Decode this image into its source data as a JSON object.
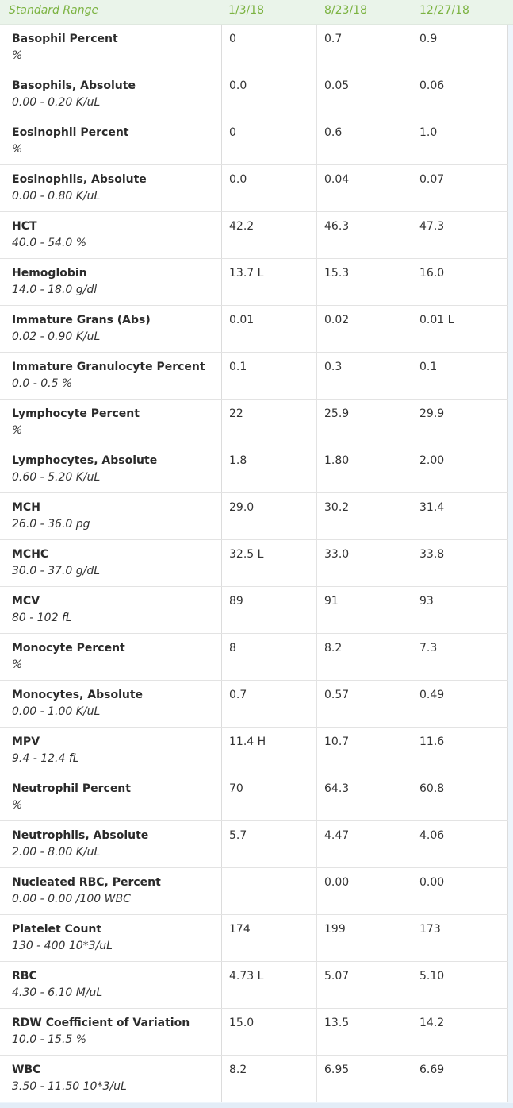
{
  "header": {
    "label": "Standard Range",
    "dates": [
      "1/3/18",
      "8/23/18",
      "12/27/18"
    ]
  },
  "rows": [
    {
      "name": "Basophil Percent",
      "range": "%",
      "values": [
        "0",
        "0.7",
        "0.9"
      ]
    },
    {
      "name": "Basophils, Absolute",
      "range": "0.00 - 0.20 K/uL",
      "values": [
        "0.0",
        "0.05",
        "0.06"
      ]
    },
    {
      "name": "Eosinophil Percent",
      "range": "%",
      "values": [
        "0",
        "0.6",
        "1.0"
      ]
    },
    {
      "name": "Eosinophils, Absolute",
      "range": "0.00 - 0.80 K/uL",
      "values": [
        "0.0",
        "0.04",
        "0.07"
      ]
    },
    {
      "name": "HCT",
      "range": "40.0 - 54.0 %",
      "values": [
        "42.2",
        "46.3",
        "47.3"
      ]
    },
    {
      "name": "Hemoglobin",
      "range": "14.0 - 18.0 g/dl",
      "values": [
        "13.7 L",
        "15.3",
        "16.0"
      ]
    },
    {
      "name": "Immature Grans (Abs)",
      "range": "0.02 - 0.90 K/uL",
      "values": [
        "0.01",
        "0.02",
        "0.01 L"
      ]
    },
    {
      "name": "Immature Granulocyte Percent",
      "range": "0.0 - 0.5 %",
      "values": [
        "0.1",
        "0.3",
        "0.1"
      ]
    },
    {
      "name": "Lymphocyte Percent",
      "range": "%",
      "values": [
        "22",
        "25.9",
        "29.9"
      ]
    },
    {
      "name": "Lymphocytes, Absolute",
      "range": "0.60 - 5.20 K/uL",
      "values": [
        "1.8",
        "1.80",
        "2.00"
      ]
    },
    {
      "name": "MCH",
      "range": "26.0 - 36.0 pg",
      "values": [
        "29.0",
        "30.2",
        "31.4"
      ]
    },
    {
      "name": "MCHC",
      "range": "30.0 - 37.0 g/dL",
      "values": [
        "32.5 L",
        "33.0",
        "33.8"
      ]
    },
    {
      "name": "MCV",
      "range": "80 - 102 fL",
      "values": [
        "89",
        "91",
        "93"
      ]
    },
    {
      "name": "Monocyte Percent",
      "range": "%",
      "values": [
        "8",
        "8.2",
        "7.3"
      ]
    },
    {
      "name": "Monocytes, Absolute",
      "range": "0.00 - 1.00 K/uL",
      "values": [
        "0.7",
        "0.57",
        "0.49"
      ]
    },
    {
      "name": "MPV",
      "range": "9.4 - 12.4 fL",
      "values": [
        "11.4 H",
        "10.7",
        "11.6"
      ]
    },
    {
      "name": "Neutrophil Percent",
      "range": "%",
      "values": [
        "70",
        "64.3",
        "60.8"
      ]
    },
    {
      "name": "Neutrophils, Absolute",
      "range": "2.00 - 8.00 K/uL",
      "values": [
        "5.7",
        "4.47",
        "4.06"
      ]
    },
    {
      "name": "Nucleated RBC, Percent",
      "range": "0.00 - 0.00 /100 WBC",
      "values": [
        "",
        "0.00",
        "0.00"
      ]
    },
    {
      "name": "Platelet Count",
      "range": "130 - 400 10*3/uL",
      "values": [
        "174",
        "199",
        "173"
      ]
    },
    {
      "name": "RBC",
      "range": "4.30 - 6.10 M/uL",
      "values": [
        "4.73 L",
        "5.07",
        "5.10"
      ]
    },
    {
      "name": "RDW Coefficient of Variation",
      "range": "10.0 - 15.5 %",
      "values": [
        "15.0",
        "13.5",
        "14.2"
      ]
    },
    {
      "name": "WBC",
      "range": "3.50 - 11.50 10*3/uL",
      "values": [
        "8.2",
        "6.95",
        "6.69"
      ]
    }
  ]
}
